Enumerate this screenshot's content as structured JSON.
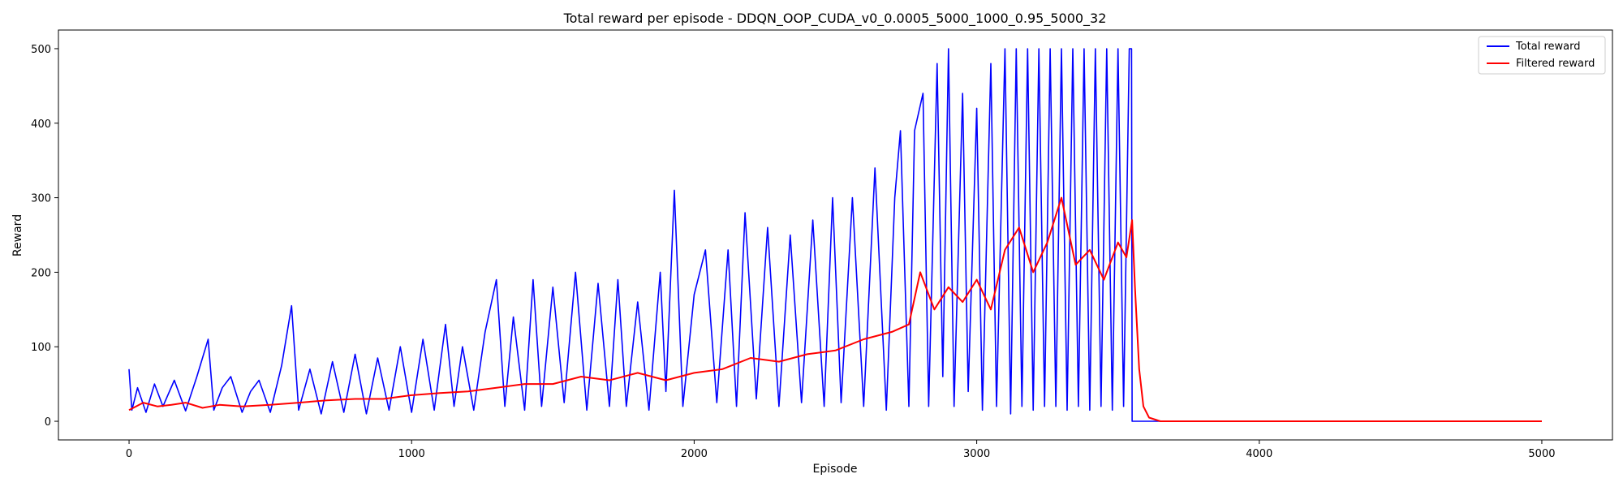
{
  "chart_data": {
    "type": "line",
    "title": "Total reward per episode - DDQN_OOP_CUDA_v0_0.0005_5000_1000_0.95_5000_32",
    "xlabel": "Episode",
    "ylabel": "Reward",
    "xlim": [
      -250,
      5250
    ],
    "ylim": [
      -25,
      525
    ],
    "xticks": [
      0,
      1000,
      2000,
      3000,
      4000,
      5000
    ],
    "yticks": [
      0,
      100,
      200,
      300,
      400,
      500
    ],
    "legend_position": "top-right",
    "series": [
      {
        "name": "Total reward",
        "color": "#0000ff",
        "points": [
          [
            0,
            70
          ],
          [
            10,
            15
          ],
          [
            30,
            45
          ],
          [
            60,
            12
          ],
          [
            90,
            50
          ],
          [
            120,
            20
          ],
          [
            160,
            55
          ],
          [
            200,
            14
          ],
          [
            240,
            60
          ],
          [
            280,
            110
          ],
          [
            300,
            15
          ],
          [
            330,
            45
          ],
          [
            360,
            60
          ],
          [
            400,
            12
          ],
          [
            430,
            40
          ],
          [
            460,
            55
          ],
          [
            500,
            12
          ],
          [
            540,
            75
          ],
          [
            575,
            155
          ],
          [
            600,
            15
          ],
          [
            640,
            70
          ],
          [
            680,
            10
          ],
          [
            720,
            80
          ],
          [
            760,
            12
          ],
          [
            800,
            90
          ],
          [
            840,
            10
          ],
          [
            880,
            85
          ],
          [
            920,
            15
          ],
          [
            960,
            100
          ],
          [
            1000,
            12
          ],
          [
            1040,
            110
          ],
          [
            1080,
            15
          ],
          [
            1120,
            130
          ],
          [
            1150,
            20
          ],
          [
            1180,
            100
          ],
          [
            1220,
            15
          ],
          [
            1260,
            120
          ],
          [
            1300,
            190
          ],
          [
            1330,
            20
          ],
          [
            1360,
            140
          ],
          [
            1400,
            15
          ],
          [
            1430,
            190
          ],
          [
            1460,
            20
          ],
          [
            1500,
            180
          ],
          [
            1540,
            25
          ],
          [
            1580,
            200
          ],
          [
            1620,
            15
          ],
          [
            1660,
            185
          ],
          [
            1700,
            20
          ],
          [
            1730,
            190
          ],
          [
            1760,
            20
          ],
          [
            1800,
            160
          ],
          [
            1840,
            15
          ],
          [
            1880,
            200
          ],
          [
            1900,
            40
          ],
          [
            1930,
            310
          ],
          [
            1960,
            20
          ],
          [
            2000,
            170
          ],
          [
            2040,
            230
          ],
          [
            2080,
            25
          ],
          [
            2120,
            230
          ],
          [
            2150,
            20
          ],
          [
            2180,
            280
          ],
          [
            2220,
            30
          ],
          [
            2260,
            260
          ],
          [
            2300,
            20
          ],
          [
            2340,
            250
          ],
          [
            2380,
            25
          ],
          [
            2420,
            270
          ],
          [
            2460,
            20
          ],
          [
            2490,
            300
          ],
          [
            2520,
            25
          ],
          [
            2560,
            300
          ],
          [
            2600,
            20
          ],
          [
            2640,
            340
          ],
          [
            2680,
            15
          ],
          [
            2710,
            300
          ],
          [
            2730,
            390
          ],
          [
            2760,
            20
          ],
          [
            2780,
            390
          ],
          [
            2810,
            440
          ],
          [
            2830,
            20
          ],
          [
            2860,
            480
          ],
          [
            2880,
            60
          ],
          [
            2900,
            500
          ],
          [
            2920,
            20
          ],
          [
            2950,
            440
          ],
          [
            2970,
            40
          ],
          [
            3000,
            420
          ],
          [
            3020,
            15
          ],
          [
            3050,
            480
          ],
          [
            3070,
            20
          ],
          [
            3100,
            500
          ],
          [
            3120,
            10
          ],
          [
            3140,
            500
          ],
          [
            3160,
            20
          ],
          [
            3180,
            500
          ],
          [
            3200,
            15
          ],
          [
            3220,
            500
          ],
          [
            3240,
            20
          ],
          [
            3260,
            500
          ],
          [
            3280,
            20
          ],
          [
            3300,
            500
          ],
          [
            3320,
            15
          ],
          [
            3340,
            500
          ],
          [
            3360,
            20
          ],
          [
            3380,
            500
          ],
          [
            3400,
            15
          ],
          [
            3420,
            500
          ],
          [
            3440,
            20
          ],
          [
            3460,
            500
          ],
          [
            3480,
            15
          ],
          [
            3500,
            500
          ],
          [
            3520,
            20
          ],
          [
            3540,
            500
          ],
          [
            3548,
            500
          ],
          [
            3550,
            0
          ],
          [
            5000,
            0
          ]
        ]
      },
      {
        "name": "Filtered reward",
        "color": "#ff0000",
        "points": [
          [
            0,
            15
          ],
          [
            50,
            25
          ],
          [
            100,
            20
          ],
          [
            150,
            22
          ],
          [
            200,
            25
          ],
          [
            260,
            18
          ],
          [
            320,
            22
          ],
          [
            400,
            20
          ],
          [
            500,
            22
          ],
          [
            600,
            25
          ],
          [
            700,
            28
          ],
          [
            800,
            30
          ],
          [
            900,
            30
          ],
          [
            1000,
            35
          ],
          [
            1100,
            38
          ],
          [
            1200,
            40
          ],
          [
            1300,
            45
          ],
          [
            1400,
            50
          ],
          [
            1500,
            50
          ],
          [
            1600,
            60
          ],
          [
            1700,
            55
          ],
          [
            1800,
            65
          ],
          [
            1900,
            55
          ],
          [
            2000,
            65
          ],
          [
            2100,
            70
          ],
          [
            2200,
            85
          ],
          [
            2300,
            80
          ],
          [
            2400,
            90
          ],
          [
            2500,
            95
          ],
          [
            2600,
            110
          ],
          [
            2700,
            120
          ],
          [
            2760,
            130
          ],
          [
            2800,
            200
          ],
          [
            2850,
            150
          ],
          [
            2900,
            180
          ],
          [
            2950,
            160
          ],
          [
            3000,
            190
          ],
          [
            3050,
            150
          ],
          [
            3100,
            230
          ],
          [
            3150,
            260
          ],
          [
            3200,
            200
          ],
          [
            3250,
            240
          ],
          [
            3300,
            300
          ],
          [
            3350,
            210
          ],
          [
            3400,
            230
          ],
          [
            3450,
            190
          ],
          [
            3500,
            240
          ],
          [
            3530,
            220
          ],
          [
            3550,
            270
          ],
          [
            3560,
            180
          ],
          [
            3575,
            70
          ],
          [
            3590,
            20
          ],
          [
            3610,
            5
          ],
          [
            3650,
            0
          ],
          [
            5000,
            0
          ]
        ]
      }
    ]
  }
}
